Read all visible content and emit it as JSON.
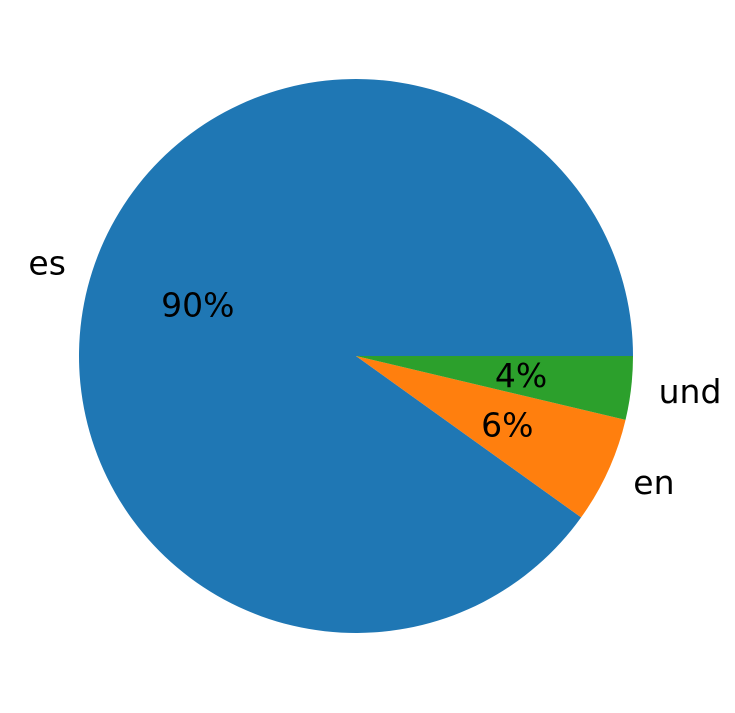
{
  "chart_data": {
    "type": "pie",
    "title": "",
    "start_angle_deg": 0,
    "direction": "counterclockwise",
    "slices": [
      {
        "label": "es",
        "value": 90.1,
        "pct_label": "90%",
        "color": "#1f77b4"
      },
      {
        "label": "en",
        "value": 6.2,
        "pct_label": "6%",
        "color": "#ff7f0e"
      },
      {
        "label": "und",
        "value": 3.7,
        "pct_label": "4%",
        "color": "#2ca02c"
      }
    ]
  }
}
